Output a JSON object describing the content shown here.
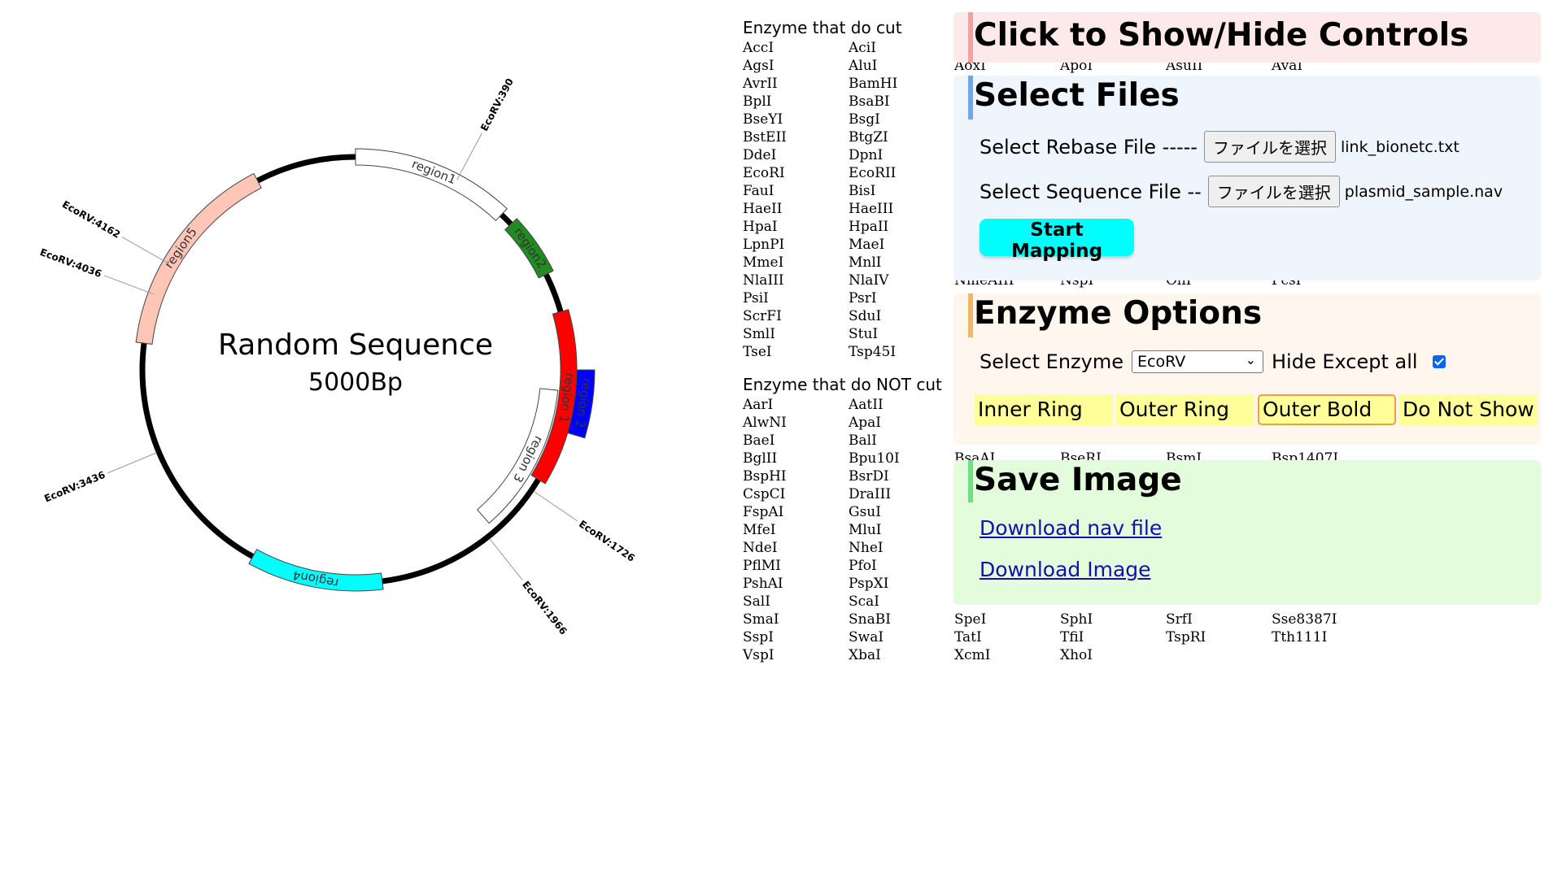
{
  "plasmid": {
    "name": "Random Sequence",
    "length_label": "5000Bp",
    "length_bp": 5000,
    "regions": [
      {
        "label": "region1",
        "start": 0,
        "end": 600,
        "color": "#ffffff",
        "ring": "outer"
      },
      {
        "label": "region2",
        "start": 650,
        "end": 880,
        "color": "#228b22",
        "ring": "outer"
      },
      {
        "label": "region 1",
        "start": 1030,
        "end": 1680,
        "color": "#ff0000",
        "ring": "outer"
      },
      {
        "label": "region 2",
        "start": 1250,
        "end": 1480,
        "color": "#0000ff",
        "ring": "outer-out"
      },
      {
        "label": "region 3",
        "start": 1330,
        "end": 1930,
        "color": "#ffffff",
        "ring": "inner"
      },
      {
        "label": "region4",
        "start": 2400,
        "end": 2900,
        "color": "#00ffff",
        "ring": "outer"
      },
      {
        "label": "region5",
        "start": 3850,
        "end": 4620,
        "color": "#ffc6b8",
        "ring": "outer"
      }
    ],
    "bold_ranges": [
      [
        600,
        1030
      ],
      [
        1680,
        2400
      ],
      [
        2900,
        3850
      ],
      [
        4620,
        5000
      ]
    ],
    "sites": [
      {
        "label": "EcoRV:390",
        "pos": 390
      },
      {
        "label": "EcoRV:1726",
        "pos": 1726
      },
      {
        "label": "EcoRV:1966",
        "pos": 1966
      },
      {
        "label": "EcoRV:3436",
        "pos": 3436
      },
      {
        "label": "EcoRV:4036",
        "pos": 4036
      },
      {
        "label": "EcoRV:4162",
        "pos": 4162
      }
    ]
  },
  "enzymes_cut": {
    "title": "Enzyme that do cut",
    "rows": [
      [
        "AccI",
        "AciI",
        "",
        "",
        "",
        ""
      ],
      [
        "AgsI",
        "AluI",
        "AoxI",
        "ApoI",
        "AsuII",
        "AvaI"
      ],
      [
        "AvrII",
        "BamHI",
        "",
        "",
        "",
        ""
      ],
      [
        "BplI",
        "BsaBI",
        "",
        "",
        "",
        ""
      ],
      [
        "BseYI",
        "BsgI",
        "",
        "",
        "",
        ""
      ],
      [
        "BstEII",
        "BtgZI",
        "",
        "",
        "",
        ""
      ],
      [
        "DdeI",
        "DpnI",
        "",
        "",
        "",
        ""
      ],
      [
        "EcoRI",
        "EcoRII",
        "",
        "",
        "",
        ""
      ],
      [
        "FauI",
        "BisI",
        "",
        "",
        "",
        ""
      ],
      [
        "HaeII",
        "HaeIII",
        "",
        "",
        "",
        ""
      ],
      [
        "HpaI",
        "HpaII",
        "",
        "",
        "",
        ""
      ],
      [
        "LpnPI",
        "MaeI",
        "",
        "",
        "",
        ""
      ],
      [
        "MmeI",
        "MnlI",
        "",
        "",
        "",
        ""
      ],
      [
        "NlaIII",
        "NlaIV",
        "NmeAIII",
        "NspI",
        "OliI",
        "PcsI"
      ],
      [
        "PsiI",
        "PsrI",
        "",
        "",
        "",
        ""
      ],
      [
        "ScrFI",
        "SduI",
        "",
        "",
        "",
        ""
      ],
      [
        "SmlI",
        "StuI",
        "",
        "",
        "",
        ""
      ],
      [
        "TseI",
        "Tsp45I",
        "",
        "",
        "",
        ""
      ]
    ]
  },
  "enzymes_not_cut": {
    "title": "Enzyme that do NOT cut",
    "rows": [
      [
        "AarI",
        "AatII",
        "",
        "",
        "",
        ""
      ],
      [
        "AlwNI",
        "ApaI",
        "",
        "",
        "",
        ""
      ],
      [
        "BaeI",
        "BalI",
        "",
        "",
        "",
        ""
      ],
      [
        "BglII",
        "Bpu10I",
        "BsaAI",
        "BseRI",
        "BsmI",
        "Bsp1407I"
      ],
      [
        "BspHI",
        "BsrDI",
        "",
        "",
        "",
        ""
      ],
      [
        "CspCI",
        "DraIII",
        "",
        "",
        "",
        ""
      ],
      [
        "FspAI",
        "GsuI",
        "",
        "",
        "",
        ""
      ],
      [
        "MfeI",
        "MluI",
        "",
        "",
        "",
        ""
      ],
      [
        "NdeI",
        "NheI",
        "",
        "",
        "",
        ""
      ],
      [
        "PflMI",
        "PfoI",
        "",
        "",
        "",
        ""
      ],
      [
        "PshAI",
        "PspXI",
        "",
        "",
        "",
        ""
      ],
      [
        "SalI",
        "ScaI",
        "",
        "",
        "",
        ""
      ],
      [
        "SmaI",
        "SnaBI",
        "SpeI",
        "SphI",
        "SrfI",
        "Sse8387I"
      ],
      [
        "SspI",
        "SwaI",
        "TatI",
        "TfiI",
        "TspRI",
        "Tth111I"
      ],
      [
        "VspI",
        "XbaI",
        "XcmI",
        "XhoI",
        "",
        ""
      ]
    ]
  },
  "controls": {
    "toggle_label": "Click to Show/Hide Controls",
    "select_files": {
      "title": "Select Files",
      "rebase_label": "Select Rebase File -----",
      "sequence_label": "Select Sequence File --",
      "choose_button": "ファイルを選択",
      "rebase_file": "link_bionetc.txt",
      "sequence_file": "plasmid_sample.nav",
      "start_button": "Start Mapping"
    },
    "enzyme_options": {
      "title": "Enzyme Options",
      "select_label": "Select Enzyme",
      "selected_enzyme": "EcoRV",
      "hide_label": "Hide Except all",
      "hide_checked": true,
      "ring_buttons": [
        "Inner Ring",
        "Outer Ring",
        "Outer Bold",
        "Do Not Show"
      ],
      "active_ring": "Outer Bold"
    },
    "save_image": {
      "title": "Save Image",
      "download_nav": "Download nav file",
      "download_image": "Download Image"
    }
  },
  "colors": {
    "toggle_bg": "#fde9e9",
    "toggle_bar": "#f4a0a0",
    "files_bg": "#eef5fd",
    "files_bar": "#6fa8ea",
    "options_bg": "#fff7ee",
    "options_bar": "#f4b46a",
    "save_bg": "#e2fcdc",
    "save_bar": "#6fe088"
  }
}
